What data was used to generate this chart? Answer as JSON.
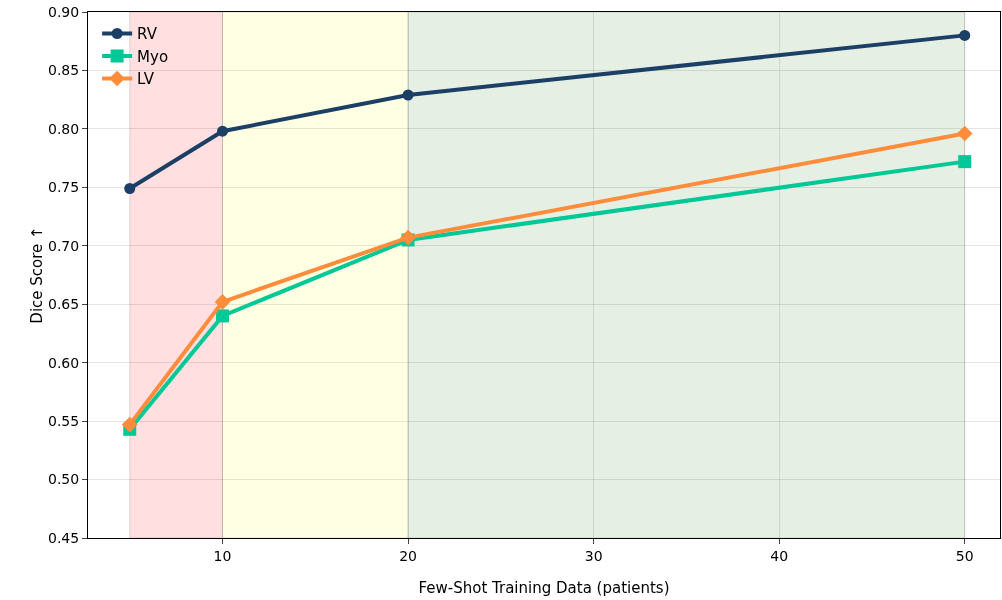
{
  "chart_data": {
    "type": "line",
    "xlabel": "Few-Shot Training Data (patients)",
    "ylabel": "Dice Score ↑",
    "x": [
      5,
      10,
      20,
      50
    ],
    "series": [
      {
        "name": "RV",
        "color": "#1c3f66",
        "marker": "circle",
        "values": [
          0.749,
          0.798,
          0.829,
          0.88
        ]
      },
      {
        "name": "Myo",
        "color": "#00c896",
        "marker": "square",
        "values": [
          0.543,
          0.64,
          0.705,
          0.772
        ]
      },
      {
        "name": "LV",
        "color": "#ff8c3b",
        "marker": "diamond",
        "values": [
          0.547,
          0.652,
          0.707,
          0.796
        ]
      }
    ],
    "bands": [
      {
        "axis": "x",
        "from": 5,
        "to": 10,
        "color": "#ffdfe0"
      },
      {
        "axis": "x",
        "from": 10,
        "to": 20,
        "color": "#ffffe3"
      },
      {
        "axis": "x",
        "from": 20,
        "to": 50,
        "color": "#e5efe3"
      }
    ],
    "xlim": [
      2.75,
      51.9
    ],
    "ylim": [
      0.45,
      0.9
    ],
    "xticks": [
      10,
      20,
      30,
      40,
      50
    ],
    "yticks": [
      {
        "value": 0.45,
        "label": "0.45"
      },
      {
        "value": 0.5,
        "label": "0.50"
      },
      {
        "value": 0.55,
        "label": "0.55"
      },
      {
        "value": 0.6,
        "label": "0.60"
      },
      {
        "value": 0.65,
        "label": "0.65"
      },
      {
        "value": 0.7,
        "label": "0.70"
      },
      {
        "value": 0.75,
        "label": "0.75"
      },
      {
        "value": 0.8,
        "label": "0.80"
      },
      {
        "value": 0.85,
        "label": "0.85"
      },
      {
        "value": 0.9,
        "label": "0.90"
      }
    ],
    "grid": true,
    "legend": "top left",
    "line_style": "solid"
  }
}
